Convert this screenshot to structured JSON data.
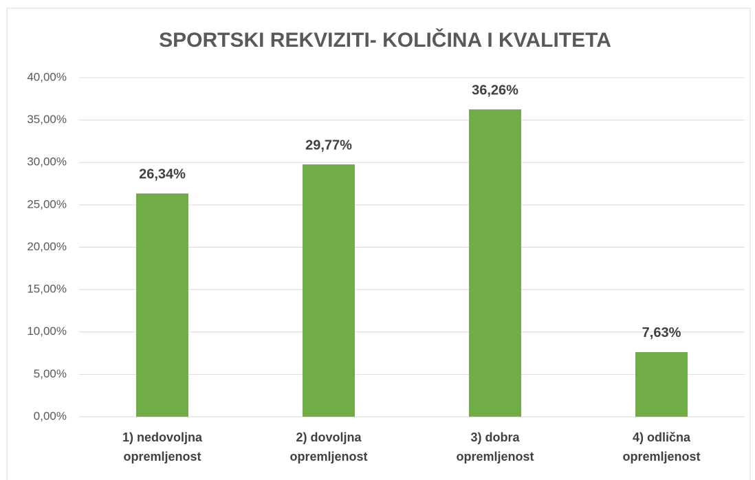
{
  "chart_data": {
    "type": "bar",
    "title": "SPORTSKI REKVIZITI- KOLIČINA I KVALITETA",
    "categories": [
      "1) nedovoljna opremljenost",
      "2) dovoljna opremljenost",
      "3) dobra opremljenost",
      "4) odlična opremljenost"
    ],
    "values": [
      26.34,
      29.77,
      36.26,
      7.63
    ],
    "value_labels": [
      "26,34%",
      "29,77%",
      "36,26%",
      "7,63%"
    ],
    "color": "#70ad47",
    "ylim": [
      0,
      40
    ],
    "yticks": [
      {
        "value": 0,
        "label": "0,00%"
      },
      {
        "value": 5,
        "label": "5,00%"
      },
      {
        "value": 10,
        "label": "10,00%"
      },
      {
        "value": 15,
        "label": "15,00%"
      },
      {
        "value": 20,
        "label": "20,00%"
      },
      {
        "value": 25,
        "label": "25,00%"
      },
      {
        "value": 30,
        "label": "30,00%"
      },
      {
        "value": 35,
        "label": "35,00%"
      },
      {
        "value": 40,
        "label": "40,00%"
      }
    ],
    "grid": true
  }
}
